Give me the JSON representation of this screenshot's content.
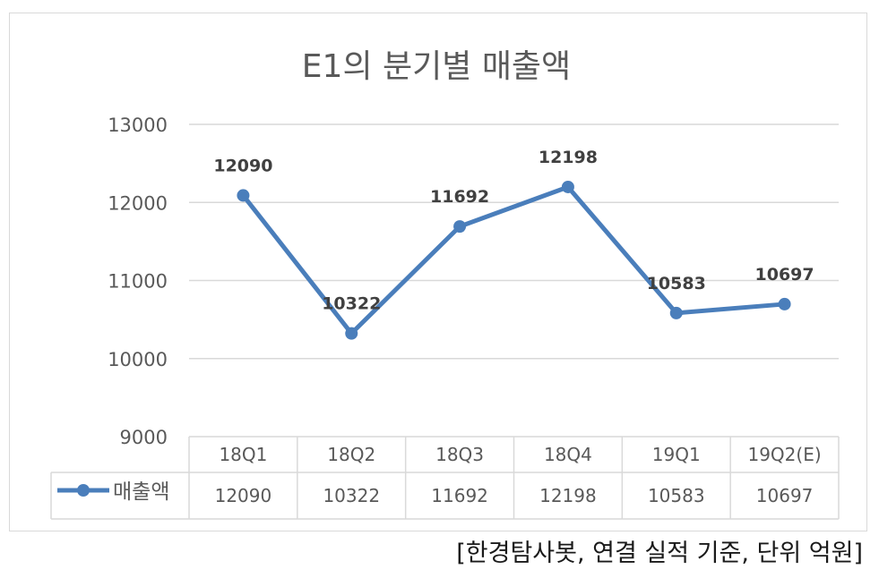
{
  "source_note": "[한경탐사봇, 연결 실적 기준, 단위 억원]",
  "colors": {
    "series": "#4a7ebb",
    "grid": "#d9d9d9",
    "text": "#595959",
    "label": "#404040"
  },
  "chart_data": {
    "type": "line",
    "title": "E1의 분기별 매출액",
    "xlabel": "",
    "ylabel": "",
    "categories": [
      "18Q1",
      "18Q2",
      "18Q3",
      "18Q4",
      "19Q1",
      "19Q2(E)"
    ],
    "series": [
      {
        "name": "매출액",
        "values": [
          12090,
          10322,
          11692,
          12198,
          10583,
          10697
        ]
      }
    ],
    "ylim": [
      9000,
      13000
    ],
    "yticks": [
      "9000",
      "10000",
      "11000",
      "12000",
      "13000"
    ],
    "data_labels": [
      "12090",
      "10322",
      "11692",
      "12198",
      "10583",
      "10697"
    ],
    "data_table": true,
    "grid": true
  }
}
